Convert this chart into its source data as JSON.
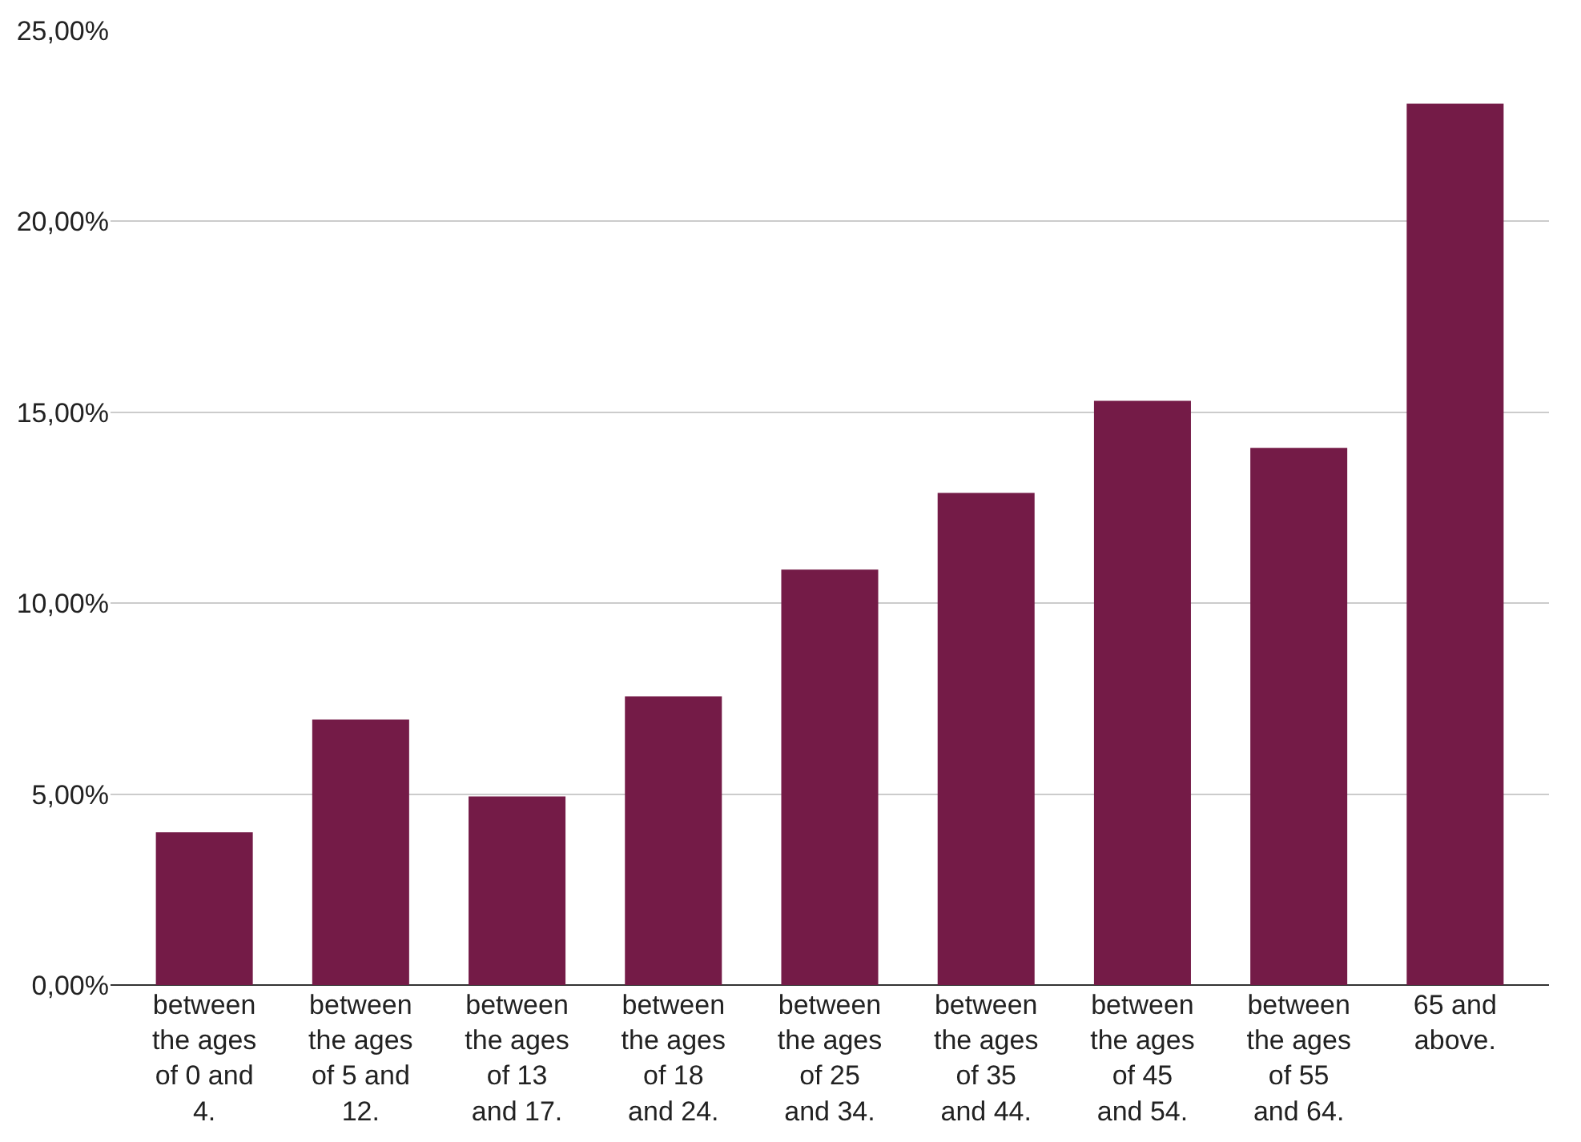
{
  "chart_data": {
    "type": "bar",
    "categories": [
      "between the ages of 0 and 4.",
      "between the ages of 5 and 12.",
      "between the ages of 13 and 17.",
      "between the ages of 18 and 24.",
      "between the ages of 25 and 34.",
      "between the ages of 35 and 44.",
      "between the ages of 45 and 54.",
      "between the ages of 55 and 64.",
      "65 and above."
    ],
    "values": [
      4.0,
      6.95,
      4.94,
      7.56,
      10.88,
      12.89,
      15.3,
      14.07,
      23.08
    ],
    "color": "#741b47",
    "ylim": [
      0,
      25
    ],
    "yticks": [
      {
        "value": 0,
        "label": "0,00%"
      },
      {
        "value": 5,
        "label": "5,00%"
      },
      {
        "value": 10,
        "label": "10,00%"
      },
      {
        "value": 15,
        "label": "15,00%"
      },
      {
        "value": 20,
        "label": "20,00%"
      },
      {
        "value": 25,
        "label": "25,00%"
      }
    ],
    "grid": "y"
  }
}
